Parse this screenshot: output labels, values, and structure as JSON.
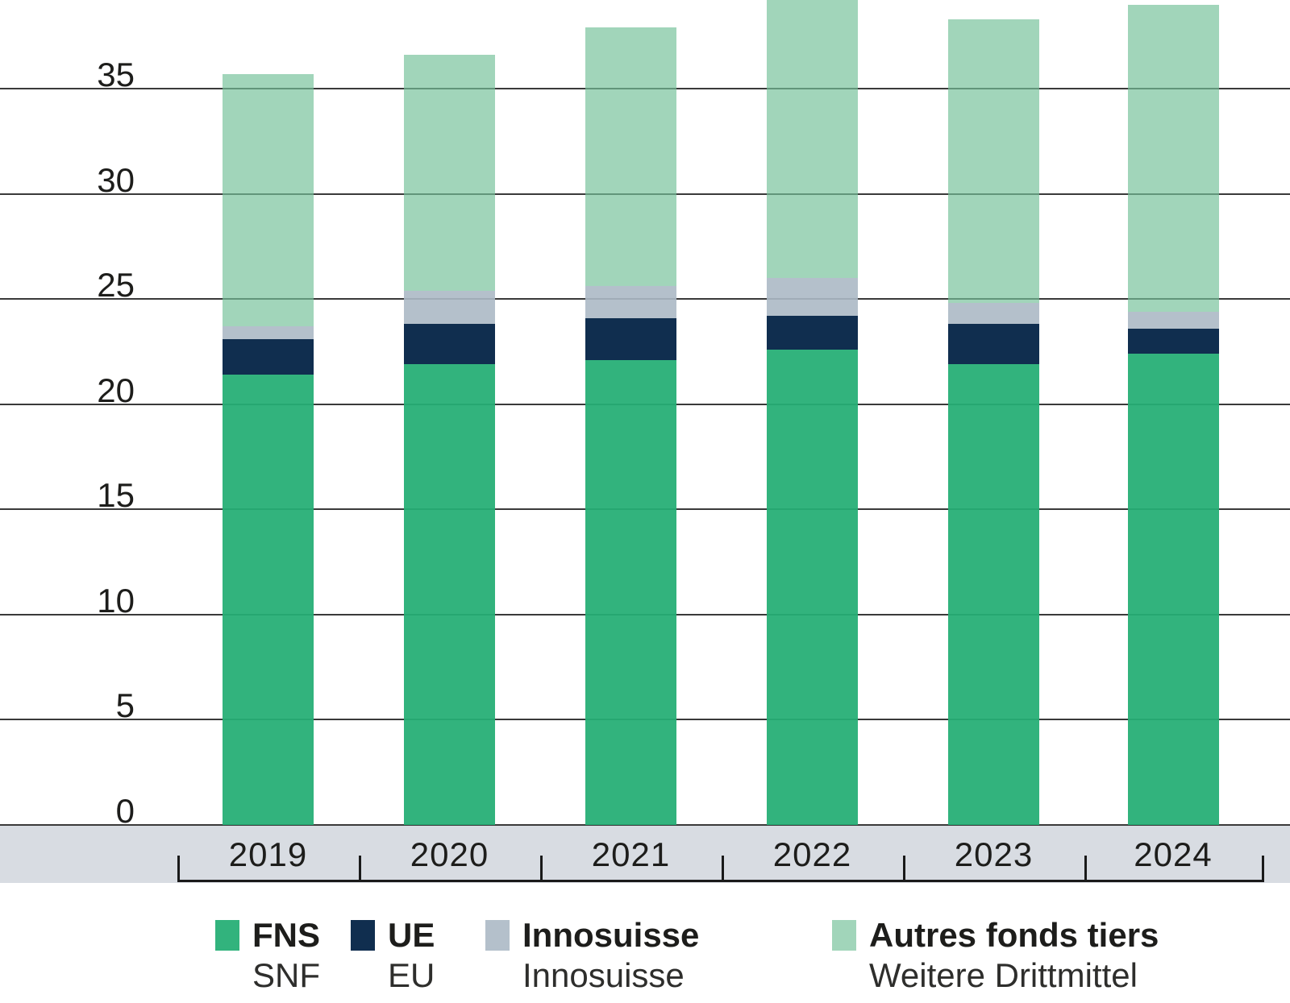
{
  "chart_data": {
    "type": "bar",
    "stacked": true,
    "title": "",
    "xlabel": "",
    "ylabel": "",
    "categories": [
      "2019",
      "2020",
      "2021",
      "2022",
      "2023",
      "2024"
    ],
    "series": [
      {
        "key": "fns",
        "name": "FNS",
        "name_de": "SNF",
        "color": "rgba(37,174,117,0.94)",
        "color_hex": "#32b37d",
        "values": [
          21.4,
          21.9,
          22.1,
          22.6,
          21.9,
          22.4
        ]
      },
      {
        "key": "ue",
        "name": "UE",
        "name_de": "EU",
        "color": "rgba(6,37,72,0.96)",
        "color_hex": "#102e4f",
        "values": [
          1.7,
          1.9,
          2.0,
          1.6,
          1.9,
          1.2
        ]
      },
      {
        "key": "innosuisse",
        "name": "Innosuisse",
        "name_de": "Innosuisse",
        "color": "rgba(172,185,197,0.9)",
        "color_hex": "#b4c0cb",
        "values": [
          0.6,
          1.6,
          1.5,
          1.8,
          1.0,
          0.8
        ]
      },
      {
        "key": "autres",
        "name": "Autres fonds tiers",
        "name_de": "Weitere Drittmittel",
        "color": "rgba(116,193,153,0.68)",
        "color_hex": "#a1d5ba",
        "values": [
          12.0,
          11.2,
          12.3,
          13.2,
          13.5,
          14.6
        ]
      }
    ],
    "totals": [
      35.7,
      36.6,
      37.9,
      39.2,
      38.3,
      39.0
    ],
    "y_ticks": [
      0,
      5,
      10,
      15,
      20,
      25,
      30,
      35
    ],
    "ylim": [
      0,
      39.2
    ],
    "grid": true,
    "legend_position": "bottom"
  },
  "colors": {
    "background": "#ffffff",
    "x_band": "#d8dce2",
    "gridline": "#3a3a3a",
    "axis": "#1a1a1a",
    "text": "#1d1d1b"
  }
}
